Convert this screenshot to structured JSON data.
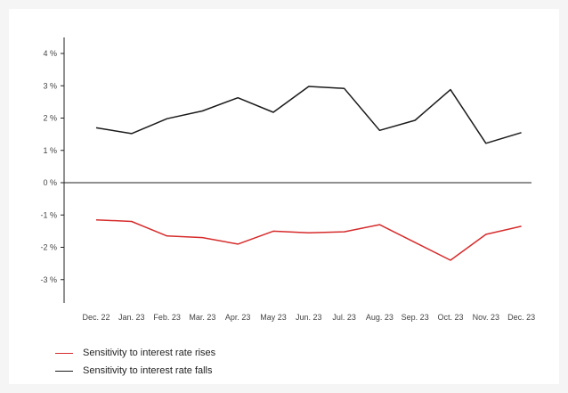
{
  "chart_data": {
    "type": "line",
    "title": "",
    "xlabel": "",
    "ylabel": "",
    "categories": [
      "Dec. 22",
      "Jan. 23",
      "Feb. 23",
      "Mar. 23",
      "Apr. 23",
      "May 23",
      "Jun. 23",
      "Jul. 23",
      "Aug. 23",
      "Sep. 23",
      "Oct. 23",
      "Nov. 23",
      "Dec. 23"
    ],
    "ylim": [
      -4,
      4.5
    ],
    "yticks": [
      4,
      3,
      2,
      1,
      0,
      -1,
      -2,
      -3
    ],
    "ytick_labels": [
      "4 %",
      "3 %",
      "2 %",
      "1 %",
      "0 %",
      "-1 %",
      "-2 %",
      "-3 %"
    ],
    "grid": false,
    "legend_position": "bottom-left",
    "series": [
      {
        "name": "Sensitivity to interest rate rises",
        "color": "#d62b2b",
        "values": [
          -1.15,
          -1.2,
          -1.65,
          -1.7,
          -1.9,
          -1.5,
          -1.55,
          -1.52,
          -1.3,
          -1.85,
          -2.4,
          -1.6,
          -1.35
        ]
      },
      {
        "name": "Sensitivity to interest rate falls",
        "color": "#1a1a1a",
        "values": [
          1.7,
          1.52,
          1.98,
          2.22,
          2.63,
          2.18,
          2.98,
          2.92,
          1.62,
          1.93,
          2.88,
          1.22,
          1.55
        ]
      }
    ]
  },
  "legend": {
    "items": [
      {
        "label": "Sensitivity to interest rate rises",
        "color": "#d62b2b"
      },
      {
        "label": "Sensitivity to interest rate falls",
        "color": "#1a1a1a"
      }
    ]
  }
}
